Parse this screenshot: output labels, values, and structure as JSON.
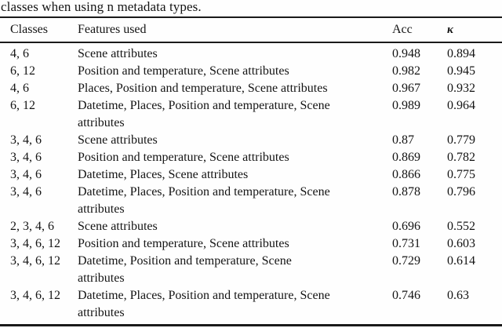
{
  "caption": "classes when using n metadata types.",
  "table": {
    "columns": {
      "classes": "Classes",
      "features": "Features used",
      "acc": "Acc",
      "kappa": "κ"
    },
    "rows": [
      {
        "classes": "4, 6",
        "features": "Scene attributes",
        "acc": "0.948",
        "kappa": "0.894"
      },
      {
        "classes": "6, 12",
        "features": "Position and temperature, Scene attributes",
        "acc": "0.982",
        "kappa": "0.945"
      },
      {
        "classes": "4, 6",
        "features": "Places, Position and temperature, Scene attributes",
        "acc": "0.967",
        "kappa": "0.932"
      },
      {
        "classes": "6, 12",
        "features": "Datetime, Places, Position and temperature, Scene\nattributes",
        "acc": "0.989",
        "kappa": "0.964"
      },
      {
        "classes": "3, 4, 6",
        "features": "Scene attributes",
        "acc": "0.87",
        "kappa": "0.779"
      },
      {
        "classes": "3, 4, 6",
        "features": "Position and temperature, Scene attributes",
        "acc": "0.869",
        "kappa": "0.782"
      },
      {
        "classes": "3, 4, 6",
        "features": "Datetime, Places, Scene attributes",
        "acc": "0.866",
        "kappa": "0.775"
      },
      {
        "classes": "3, 4, 6",
        "features": "Datetime, Places, Position and temperature, Scene\nattributes",
        "acc": "0.878",
        "kappa": "0.796"
      },
      {
        "classes": "2, 3, 4, 6",
        "features": "Scene attributes",
        "acc": "0.696",
        "kappa": "0.552"
      },
      {
        "classes": "3, 4, 6, 12",
        "features": "Position and temperature, Scene attributes",
        "acc": "0.731",
        "kappa": "0.603"
      },
      {
        "classes": "3, 4, 6, 12",
        "features": "Datetime, Position and temperature, Scene\nattributes",
        "acc": "0.729",
        "kappa": "0.614"
      },
      {
        "classes": "3, 4, 6, 12",
        "features": "Datetime, Places, Position and temperature, Scene\nattributes",
        "acc": "0.746",
        "kappa": "0.63"
      }
    ]
  }
}
